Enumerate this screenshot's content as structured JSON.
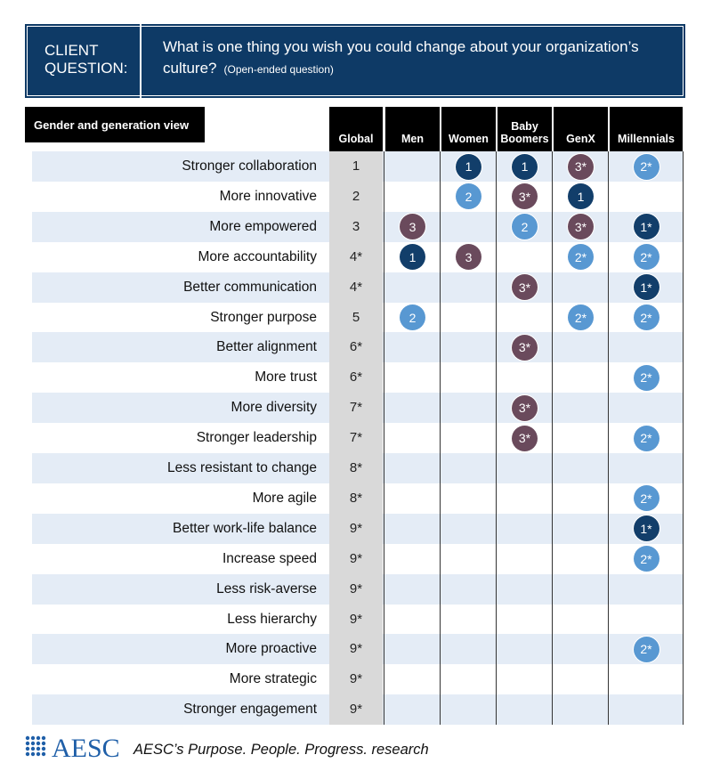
{
  "header": {
    "label_lines": [
      "CLIENT",
      "QUESTION:"
    ],
    "question": "What is one thing you wish you could change about your organization’s culture?",
    "note": "(Open-ended question)"
  },
  "table": {
    "title": "Gender and generation view",
    "columns": [
      "Global",
      "Men",
      "Women",
      "Baby Boomers",
      "GenX",
      "Millennials"
    ],
    "rows": [
      {
        "label": "Stronger collaboration",
        "cells": [
          "1",
          null,
          "1",
          "1",
          "3*",
          "2*"
        ]
      },
      {
        "label": "More innovative",
        "cells": [
          "2",
          null,
          "2",
          "3*",
          "1",
          null
        ]
      },
      {
        "label": "More empowered",
        "cells": [
          "3",
          "3",
          null,
          "2",
          "3*",
          "1*"
        ]
      },
      {
        "label": "More accountability",
        "cells": [
          "4*",
          "1",
          "3",
          null,
          "2*",
          "2*"
        ]
      },
      {
        "label": "Better communication",
        "cells": [
          "4*",
          null,
          null,
          "3*",
          null,
          "1*"
        ]
      },
      {
        "label": "Stronger purpose",
        "cells": [
          "5",
          "2",
          null,
          null,
          "2*",
          "2*"
        ]
      },
      {
        "label": "Better alignment",
        "cells": [
          "6*",
          null,
          null,
          "3*",
          null,
          null
        ]
      },
      {
        "label": "More trust",
        "cells": [
          "6*",
          null,
          null,
          null,
          null,
          "2*"
        ]
      },
      {
        "label": "More diversity",
        "cells": [
          "7*",
          null,
          null,
          "3*",
          null,
          null
        ]
      },
      {
        "label": "Stronger leadership",
        "cells": [
          "7*",
          null,
          null,
          "3*",
          null,
          "2*"
        ]
      },
      {
        "label": "Less resistant to change",
        "cells": [
          "8*",
          null,
          null,
          null,
          null,
          null
        ]
      },
      {
        "label": "More agile",
        "cells": [
          "8*",
          null,
          null,
          null,
          null,
          "2*"
        ]
      },
      {
        "label": "Better work-life balance",
        "cells": [
          "9*",
          null,
          null,
          null,
          null,
          "1*"
        ]
      },
      {
        "label": "Increase speed",
        "cells": [
          "9*",
          null,
          null,
          null,
          null,
          "2*"
        ]
      },
      {
        "label": "Less risk-averse",
        "cells": [
          "9*",
          null,
          null,
          null,
          null,
          null
        ]
      },
      {
        "label": "Less hierarchy",
        "cells": [
          "9*",
          null,
          null,
          null,
          null,
          null
        ]
      },
      {
        "label": "More proactive",
        "cells": [
          "9*",
          null,
          null,
          null,
          null,
          "2*"
        ]
      },
      {
        "label": "More strategic",
        "cells": [
          "9*",
          null,
          null,
          null,
          null,
          null
        ]
      },
      {
        "label": "Stronger engagement",
        "cells": [
          "9*",
          null,
          null,
          null,
          null,
          null
        ]
      }
    ]
  },
  "badge_colors": {
    "1": "#123e6a",
    "2": "#5898d2",
    "3": "#6a4a5c"
  },
  "footer": {
    "logo": "AESC",
    "tagline": "AESC’s Purpose. People. Progress. research"
  }
}
